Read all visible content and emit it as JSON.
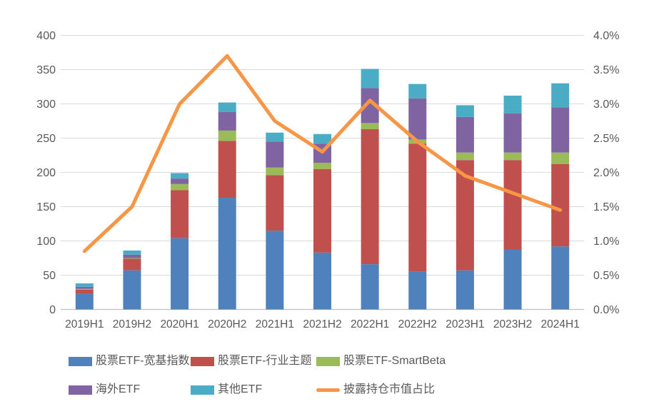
{
  "chart_data": {
    "type": "combo-stacked-bar-line",
    "title": "",
    "categories": [
      "2019H1",
      "2019H2",
      "2020H1",
      "2020H2",
      "2021H1",
      "2021H2",
      "2022H1",
      "2022H2",
      "2023H1",
      "2023H2",
      "2024H1"
    ],
    "series": [
      {
        "name": "股票ETF-宽基指数",
        "type": "bar",
        "color": "#4F81BD",
        "values": [
          23,
          57,
          104,
          163,
          115,
          83,
          66,
          55,
          57,
          87,
          92
        ]
      },
      {
        "name": "股票ETF-行业主题",
        "type": "bar",
        "color": "#C0504D",
        "values": [
          6,
          17,
          70,
          83,
          81,
          122,
          197,
          187,
          161,
          131,
          120
        ]
      },
      {
        "name": "股票ETF-SmartBeta",
        "type": "bar",
        "color": "#9BBB59",
        "values": [
          1,
          1,
          9,
          15,
          11,
          9,
          9,
          6,
          11,
          11,
          17
        ]
      },
      {
        "name": "海外ETF",
        "type": "bar",
        "color": "#8064A2",
        "values": [
          3,
          5,
          8,
          27,
          38,
          28,
          51,
          60,
          52,
          57,
          66
        ]
      },
      {
        "name": "其他ETF",
        "type": "bar",
        "color": "#4BACC6",
        "values": [
          5,
          6,
          8,
          14,
          13,
          14,
          28,
          21,
          17,
          26,
          35
        ]
      },
      {
        "name": "披露持仓市值占比",
        "type": "line",
        "color": "#F79646",
        "values_pct": [
          0.85,
          1.5,
          3.0,
          3.7,
          2.75,
          2.3,
          3.05,
          2.45,
          1.95,
          1.7,
          1.45
        ]
      }
    ],
    "left_axis": {
      "min": 0,
      "max": 400,
      "step": 50,
      "tick_labels": [
        "0",
        "50",
        "100",
        "150",
        "200",
        "250",
        "300",
        "350",
        "400"
      ]
    },
    "right_axis": {
      "min": 0.0,
      "max": 4.0,
      "step": 0.5,
      "tick_labels": [
        "0.0%",
        "0.5%",
        "1.0%",
        "1.5%",
        "2.0%",
        "2.5%",
        "3.0%",
        "3.5%",
        "4.0%"
      ]
    },
    "grid": true,
    "legend_position": "bottom",
    "colors": {
      "gridline": "#D9D9D9",
      "axis_line": "#BFBFBF",
      "tick_text": "#595959",
      "legend_text": "#595959",
      "background": "#FFFFFF"
    },
    "legend": {
      "rows": [
        [
          {
            "label": "股票ETF-宽基指数",
            "marker": "rect",
            "color": "#4F81BD"
          },
          {
            "label": "股票ETF-行业主题",
            "marker": "rect",
            "color": "#C0504D"
          },
          {
            "label": "股票ETF-SmartBeta",
            "marker": "rect",
            "color": "#9BBB59"
          }
        ],
        [
          {
            "label": "海外ETF",
            "marker": "rect",
            "color": "#8064A2"
          },
          {
            "label": "其他ETF",
            "marker": "rect",
            "color": "#4BACC6"
          },
          {
            "label": "披露持仓市值占比",
            "marker": "line",
            "color": "#F79646"
          }
        ]
      ]
    }
  }
}
